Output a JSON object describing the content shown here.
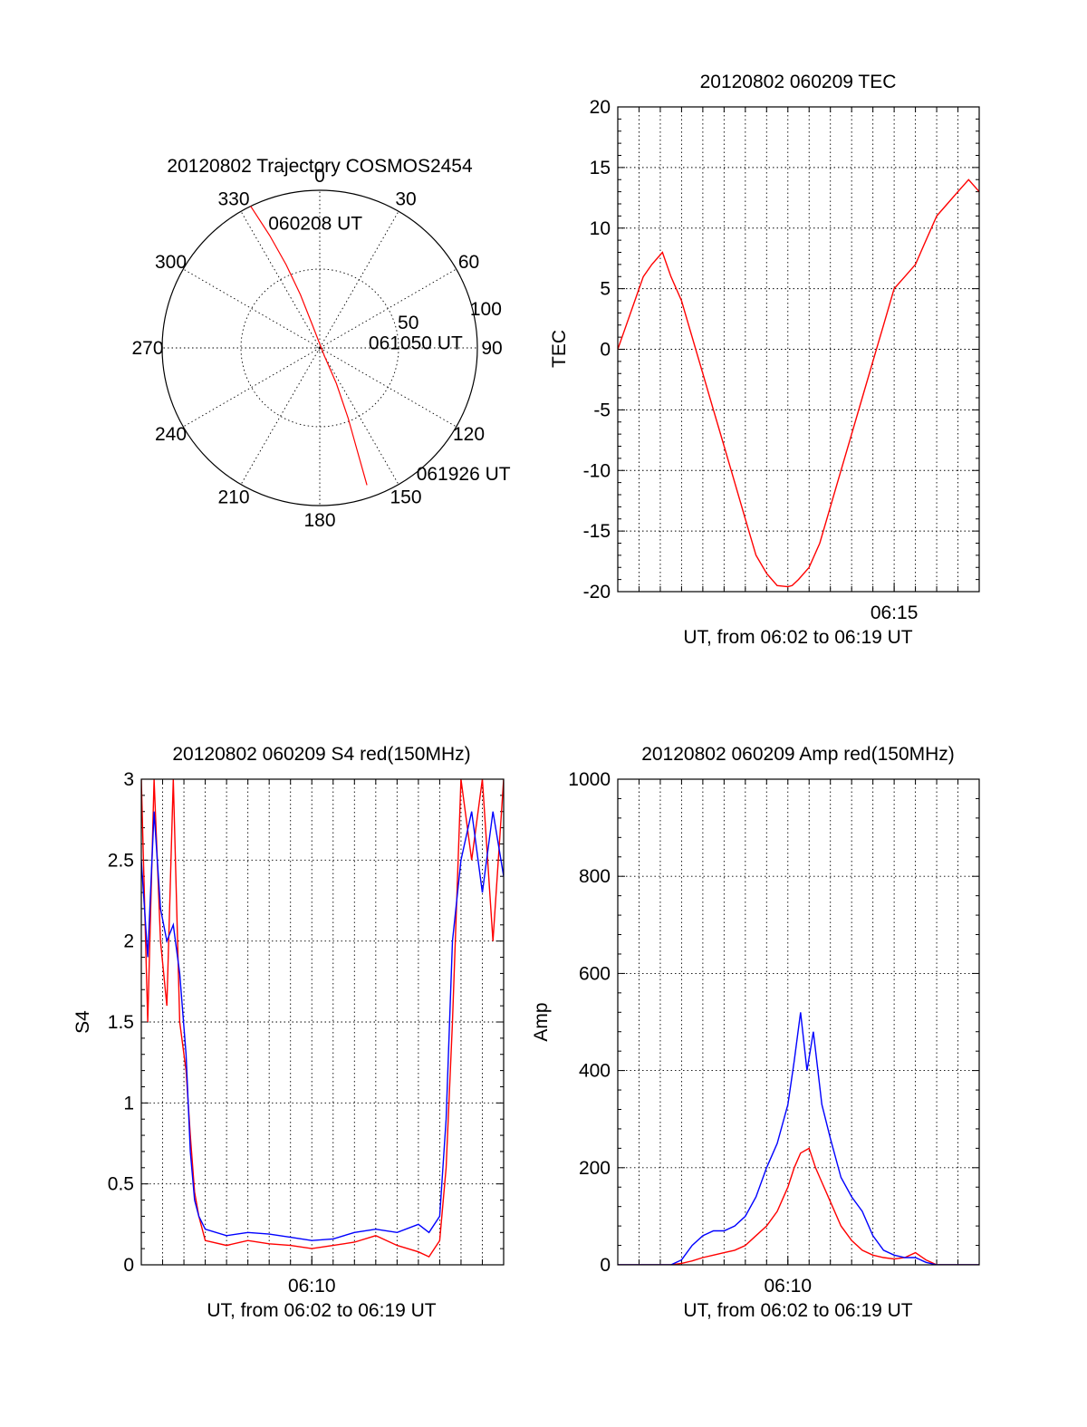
{
  "chart_data": [
    {
      "type": "polar",
      "title": "20120802 Trajectory COSMOS2454",
      "angle_labels": [
        "0",
        "30",
        "60",
        "90",
        "120",
        "150",
        "180",
        "210",
        "240",
        "270",
        "300",
        "330"
      ],
      "radial_labels": [
        "50",
        "100"
      ],
      "rlim": [
        0,
        100
      ],
      "grid": true,
      "series": [
        {
          "color": "#ff0000",
          "points": [
            [
              334,
              100
            ],
            [
              336,
              78
            ],
            [
              338,
              57
            ],
            [
              340,
              36
            ],
            [
              342,
              16
            ],
            [
              150,
              6
            ],
            [
              155,
              25
            ],
            [
              158,
              48
            ],
            [
              160,
              70
            ],
            [
              161,
              92
            ]
          ]
        }
      ],
      "annotations": [
        {
          "text": "060208 UT",
          "theta": 358,
          "r": 79
        },
        {
          "text": "061050 UT",
          "theta": 84,
          "r": 30
        },
        {
          "text": "061926 UT",
          "theta": 143,
          "r": 100
        }
      ]
    },
    {
      "type": "line",
      "title": "20120802 060209 TEC",
      "xlabel": "UT, from 06:02 to 06:19 UT",
      "ylabel": "TEC",
      "xlim": [
        0,
        17
      ],
      "ylim": [
        -20,
        20
      ],
      "yticks": [
        -20,
        -15,
        -10,
        -5,
        0,
        5,
        10,
        15,
        20
      ],
      "xtick_labels": [
        {
          "t": 13,
          "label": "06:15"
        }
      ],
      "grid": true,
      "series": [
        {
          "color": "#ff0000",
          "x": [
            0,
            0.4,
            0.8,
            1.2,
            1.6,
            2.1,
            2.5,
            3,
            3.5,
            4,
            4.5,
            5,
            5.5,
            6,
            6.5,
            7,
            7.5,
            8,
            8.2,
            8.5,
            9,
            9.5,
            10,
            10.5,
            11,
            11.5,
            12,
            12.5,
            13,
            13.5,
            14,
            14.5,
            15,
            15.5,
            16,
            16.5,
            17
          ],
          "y": [
            0,
            2,
            4,
            6,
            7,
            8,
            6,
            4,
            1,
            -2,
            -5,
            -8,
            -11,
            -14,
            -17,
            -18.5,
            -19.5,
            -19.6,
            -19.5,
            -19,
            -18,
            -16,
            -13,
            -10,
            -7,
            -4,
            -1,
            2,
            5,
            6,
            7,
            9,
            11,
            12,
            13,
            14,
            13
          ]
        }
      ]
    },
    {
      "type": "line",
      "title": "20120802 060209 S4 red(150MHz)",
      "xlabel": "UT, from 06:02 to 06:19 UT",
      "ylabel": "S4",
      "xlim": [
        0,
        17
      ],
      "ylim": [
        0,
        3
      ],
      "yticks": [
        0,
        0.5,
        1,
        1.5,
        2,
        2.5,
        3
      ],
      "ytick_labels": [
        "0",
        "0.5",
        "1",
        "1.5",
        "2",
        "2.5",
        "3"
      ],
      "xtick_labels": [
        {
          "t": 8,
          "label": "06:10"
        }
      ],
      "grid": true,
      "series": [
        {
          "color": "#ff0000",
          "x": [
            0,
            0.3,
            0.6,
            0.9,
            1.2,
            1.5,
            1.8,
            2.1,
            2.3,
            2.5,
            2.7,
            3,
            4,
            5,
            6,
            7,
            8,
            9,
            10,
            11,
            12,
            13,
            13.5,
            14,
            14.3,
            14.6,
            15,
            15.5,
            16,
            16.5,
            17
          ],
          "y": [
            3,
            1.5,
            3,
            2,
            1.6,
            3,
            1.5,
            1.2,
            0.8,
            0.45,
            0.3,
            0.15,
            0.12,
            0.15,
            0.13,
            0.12,
            0.1,
            0.12,
            0.14,
            0.18,
            0.12,
            0.08,
            0.05,
            0.15,
            0.6,
            1.5,
            3,
            2.5,
            3,
            2,
            3
          ]
        },
        {
          "color": "#0000ff",
          "x": [
            0,
            0.3,
            0.6,
            0.9,
            1.2,
            1.5,
            1.8,
            2.1,
            2.3,
            2.5,
            2.7,
            3,
            4,
            5,
            6,
            7,
            8,
            9,
            10,
            11,
            12,
            13,
            13.5,
            14,
            14.3,
            14.6,
            15,
            15.5,
            16,
            16.5,
            17
          ],
          "y": [
            2.5,
            1.9,
            2.8,
            2.2,
            2,
            2.1,
            1.8,
            1.3,
            0.7,
            0.4,
            0.3,
            0.22,
            0.18,
            0.2,
            0.19,
            0.17,
            0.15,
            0.16,
            0.2,
            0.22,
            0.2,
            0.25,
            0.2,
            0.3,
            0.9,
            2,
            2.5,
            2.8,
            2.3,
            2.8,
            2.4
          ]
        }
      ]
    },
    {
      "type": "line",
      "title": "20120802 060209 Amp red(150MHz)",
      "xlabel": "UT, from 06:02 to 06:19 UT",
      "ylabel": "Amp",
      "xlim": [
        0,
        17
      ],
      "ylim": [
        0,
        1000
      ],
      "yticks": [
        0,
        200,
        400,
        600,
        800,
        1000
      ],
      "xtick_labels": [
        {
          "t": 8,
          "label": "06:10"
        }
      ],
      "grid": true,
      "series": [
        {
          "color": "#ff0000",
          "x": [
            0,
            2.5,
            3,
            3.5,
            4,
            4.5,
            5,
            5.5,
            6,
            6.5,
            7,
            7.5,
            8,
            8.3,
            8.6,
            9,
            9.3,
            9.6,
            10,
            10.5,
            11,
            11.5,
            12,
            12.5,
            13,
            13.5,
            14,
            14.5,
            15,
            17
          ],
          "y": [
            0,
            0,
            3,
            8,
            15,
            20,
            25,
            30,
            40,
            60,
            80,
            110,
            160,
            200,
            230,
            240,
            200,
            170,
            130,
            80,
            50,
            30,
            20,
            15,
            12,
            15,
            25,
            10,
            0,
            0
          ]
        },
        {
          "color": "#0000ff",
          "x": [
            0,
            2.5,
            3,
            3.5,
            4,
            4.5,
            5,
            5.5,
            6,
            6.5,
            7,
            7.5,
            8,
            8.3,
            8.6,
            8.9,
            9.2,
            9.6,
            10,
            10.5,
            11,
            11.5,
            12,
            12.5,
            13,
            13.5,
            14,
            14.5,
            15,
            17
          ],
          "y": [
            0,
            0,
            10,
            40,
            60,
            70,
            70,
            80,
            100,
            140,
            200,
            250,
            330,
            420,
            520,
            400,
            480,
            330,
            260,
            180,
            140,
            110,
            60,
            30,
            20,
            15,
            15,
            5,
            0,
            0
          ]
        }
      ]
    }
  ]
}
